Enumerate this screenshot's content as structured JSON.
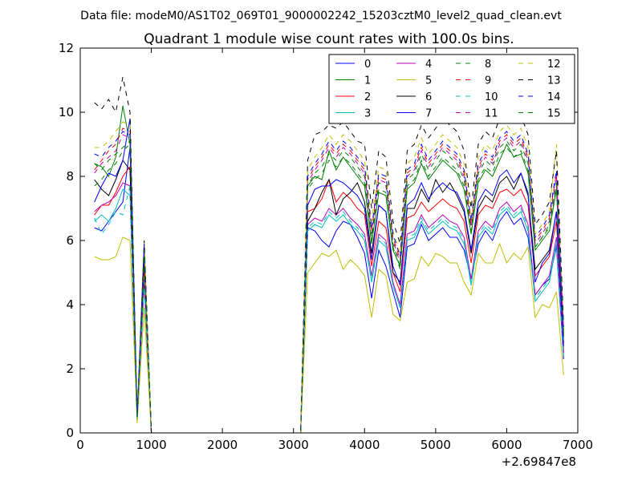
{
  "chart_data": {
    "type": "line",
    "suptitle": "Data file: modeM0/AS1T02_069T01_9000002242_15203cztM0_level2_quad_clean.evt",
    "title": "Quadrant 1 module wise count rates with 100.0s bins.",
    "xlabel": "",
    "ylabel": "",
    "x_offset_label": "+2.69847e8",
    "xlim": [
      0,
      7000
    ],
    "ylim": [
      0,
      12
    ],
    "x_ticks": [
      "0",
      "1000",
      "2000",
      "3000",
      "4000",
      "5000",
      "6000",
      "7000"
    ],
    "y_ticks": [
      "0",
      "2",
      "4",
      "6",
      "8",
      "10",
      "12"
    ],
    "legend_position": "top-right",
    "legend_columns": 4,
    "x": [
      200,
      300,
      400,
      500,
      600,
      700,
      800,
      900,
      1000,
      1100,
      1200,
      1300,
      1400,
      1500,
      1600,
      1700,
      1800,
      1900,
      2000,
      2100,
      2200,
      2300,
      2400,
      2500,
      2600,
      2700,
      2800,
      2900,
      3000,
      3100,
      3200,
      3300,
      3400,
      3500,
      3600,
      3700,
      3800,
      3900,
      4000,
      4100,
      4200,
      4300,
      4400,
      4500,
      4600,
      4700,
      4800,
      4900,
      5000,
      5100,
      5200,
      5300,
      5400,
      5500,
      5600,
      5700,
      5800,
      5900,
      6000,
      6100,
      6200,
      6300,
      6400,
      6500,
      6600,
      6700,
      6800
    ],
    "series": [
      {
        "name": "0",
        "color": "#0000ff",
        "dash": "solid",
        "values": [
          6.4,
          6.3,
          6.6,
          6.9,
          7.2,
          8.9,
          0.4,
          4.8,
          0,
          0,
          0,
          0,
          0,
          0,
          0,
          0,
          0,
          0,
          0,
          0,
          0,
          0,
          0,
          0,
          0,
          0,
          0,
          0,
          0,
          0,
          6.4,
          6.3,
          6.0,
          5.8,
          6.3,
          6.6,
          6.5,
          6.1,
          5.6,
          4.2,
          5.7,
          5.2,
          4.4,
          3.6,
          5.8,
          5.9,
          6.5,
          6.0,
          6.2,
          6.4,
          6.1,
          6.1,
          5.7,
          4.8,
          5.9,
          6.3,
          6.0,
          6.6,
          6.9,
          6.5,
          6.7,
          6.1,
          4.3,
          4.6,
          4.8,
          5.8,
          2.3
        ]
      },
      {
        "name": "1",
        "color": "#008000",
        "dash": "solid",
        "values": [
          8.4,
          8.3,
          8.0,
          8.6,
          10.2,
          9.0,
          0.5,
          5.5,
          0,
          0,
          0,
          0,
          0,
          0,
          0,
          0,
          0,
          0,
          0,
          0,
          0,
          0,
          0,
          0,
          0,
          0,
          0,
          0,
          0,
          0,
          7.7,
          8.0,
          7.9,
          8.8,
          8.2,
          8.6,
          8.3,
          8.0,
          7.7,
          5.9,
          7.5,
          7.4,
          5.7,
          5.2,
          7.6,
          7.8,
          8.4,
          7.9,
          8.2,
          8.5,
          8.3,
          8.1,
          7.6,
          6.2,
          7.8,
          8.2,
          8.0,
          8.5,
          9.0,
          8.6,
          8.7,
          8.1,
          5.7,
          6.0,
          6.3,
          7.6,
          3.0
        ]
      },
      {
        "name": "2",
        "color": "#ff0000",
        "dash": "solid",
        "values": [
          6.8,
          7.1,
          7.1,
          7.5,
          8.0,
          8.3,
          0.5,
          5.2,
          0,
          0,
          0,
          0,
          0,
          0,
          0,
          0,
          0,
          0,
          0,
          0,
          0,
          0,
          0,
          0,
          0,
          0,
          0,
          0,
          0,
          0,
          6.9,
          7.0,
          7.3,
          7.9,
          7.2,
          7.5,
          7.3,
          7.0,
          6.8,
          5.2,
          6.6,
          6.4,
          5.0,
          4.4,
          6.7,
          6.8,
          7.2,
          6.9,
          7.1,
          7.3,
          7.1,
          7.0,
          6.6,
          5.3,
          6.8,
          7.1,
          7.0,
          7.5,
          7.6,
          7.4,
          7.6,
          7.1,
          4.9,
          5.2,
          5.5,
          6.6,
          2.6
        ]
      },
      {
        "name": "3",
        "color": "#00bfbf",
        "dash": "solid",
        "values": [
          6.6,
          6.8,
          6.6,
          7.0,
          7.6,
          7.4,
          0.4,
          4.6,
          0,
          0,
          0,
          0,
          0,
          0,
          0,
          0,
          0,
          0,
          0,
          0,
          0,
          0,
          0,
          0,
          0,
          0,
          0,
          0,
          0,
          0,
          6.3,
          6.5,
          6.4,
          6.8,
          6.6,
          6.8,
          6.5,
          6.3,
          6.0,
          4.7,
          6.0,
          5.8,
          4.6,
          3.9,
          6.0,
          6.1,
          6.6,
          6.2,
          6.4,
          6.6,
          6.4,
          6.3,
          5.9,
          4.6,
          6.1,
          6.4,
          6.2,
          6.8,
          7.0,
          6.7,
          6.9,
          6.3,
          4.1,
          4.4,
          4.7,
          5.9,
          2.4
        ]
      },
      {
        "name": "4",
        "color": "#bf00bf",
        "dash": "solid",
        "values": [
          6.9,
          7.1,
          7.2,
          7.4,
          7.8,
          7.7,
          0.4,
          4.8,
          0,
          0,
          0,
          0,
          0,
          0,
          0,
          0,
          0,
          0,
          0,
          0,
          0,
          0,
          0,
          0,
          0,
          0,
          0,
          0,
          0,
          0,
          6.5,
          6.7,
          6.6,
          7.0,
          6.8,
          7.0,
          6.7,
          6.5,
          6.2,
          4.9,
          6.2,
          6.0,
          4.7,
          4.0,
          6.2,
          6.3,
          6.8,
          6.4,
          6.6,
          6.8,
          6.6,
          6.5,
          6.1,
          4.8,
          6.3,
          6.6,
          6.4,
          7.0,
          7.2,
          6.9,
          7.1,
          6.5,
          4.3,
          4.6,
          4.9,
          6.1,
          2.5
        ]
      },
      {
        "name": "5",
        "color": "#bfbf00",
        "dash": "solid",
        "values": [
          5.5,
          5.4,
          5.4,
          5.5,
          6.1,
          6.0,
          0.3,
          3.9,
          0,
          0,
          0,
          0,
          0,
          0,
          0,
          0,
          0,
          0,
          0,
          0,
          0,
          0,
          0,
          0,
          0,
          0,
          0,
          0,
          0,
          0,
          5.0,
          5.3,
          5.6,
          5.5,
          5.7,
          5.1,
          5.4,
          5.2,
          4.9,
          3.6,
          5.1,
          4.9,
          3.7,
          3.5,
          4.7,
          4.8,
          5.5,
          5.2,
          5.6,
          5.5,
          5.3,
          5.3,
          4.7,
          4.3,
          5.6,
          5.3,
          5.3,
          5.9,
          5.3,
          5.6,
          5.4,
          5.8,
          3.6,
          4.0,
          3.9,
          4.4,
          1.8
        ]
      },
      {
        "name": "6",
        "color": "#000000",
        "dash": "solid",
        "values": [
          7.9,
          7.6,
          7.4,
          7.9,
          8.5,
          8.2,
          0.5,
          5.4,
          0,
          0,
          0,
          0,
          0,
          0,
          0,
          0,
          0,
          0,
          0,
          0,
          0,
          0,
          0,
          0,
          0,
          0,
          0,
          0,
          0,
          0,
          6.6,
          7.0,
          7.5,
          7.9,
          6.8,
          7.3,
          7.5,
          7.8,
          7.2,
          5.6,
          7.1,
          6.9,
          5.0,
          4.7,
          7.0,
          7.0,
          7.6,
          7.2,
          7.9,
          7.5,
          7.8,
          7.4,
          6.9,
          5.6,
          7.0,
          7.4,
          7.2,
          7.8,
          8.0,
          7.6,
          8.1,
          7.4,
          5.1,
          5.4,
          5.7,
          6.9,
          2.8
        ]
      },
      {
        "name": "7",
        "color": "#0000ff",
        "dash": "solid",
        "values": [
          7.2,
          7.7,
          8.1,
          8.0,
          8.5,
          9.8,
          0.5,
          5.8,
          0,
          0,
          0,
          0,
          0,
          0,
          0,
          0,
          0,
          0,
          0,
          0,
          0,
          0,
          0,
          0,
          0,
          0,
          0,
          0,
          0,
          0,
          7.1,
          7.6,
          7.7,
          7.7,
          7.9,
          7.8,
          7.6,
          7.4,
          7.0,
          5.4,
          7.1,
          6.9,
          5.2,
          4.6,
          7.1,
          7.3,
          7.8,
          7.3,
          7.6,
          7.8,
          7.6,
          7.5,
          7.0,
          5.7,
          7.2,
          7.6,
          7.4,
          8.0,
          8.2,
          7.8,
          8.1,
          7.5,
          4.7,
          5.3,
          5.6,
          6.9,
          2.7
        ]
      },
      {
        "name": "8",
        "color": "#008000",
        "dash": "dashed",
        "values": [
          7.7,
          7.9,
          8.2,
          8.4,
          8.8,
          9.0,
          0.5,
          5.6,
          0,
          0,
          0,
          0,
          0,
          0,
          0,
          0,
          0,
          0,
          0,
          0,
          0,
          0,
          0,
          0,
          0,
          0,
          0,
          0,
          0,
          0,
          7.6,
          7.9,
          8.1,
          8.5,
          8.3,
          8.6,
          8.4,
          8.1,
          7.8,
          6.0,
          7.6,
          7.5,
          5.8,
          5.1,
          7.7,
          7.9,
          8.5,
          8.0,
          8.3,
          8.6,
          8.4,
          8.2,
          7.7,
          6.2,
          7.9,
          8.3,
          8.1,
          8.7,
          8.9,
          8.6,
          8.8,
          8.2,
          5.8,
          6.1,
          6.4,
          7.7,
          3.1
        ]
      },
      {
        "name": "9",
        "color": "#ff0000",
        "dash": "dashed",
        "values": [
          8.2,
          8.5,
          8.8,
          9.0,
          9.5,
          9.4,
          0.5,
          5.9,
          0,
          0,
          0,
          0,
          0,
          0,
          0,
          0,
          0,
          0,
          0,
          0,
          0,
          0,
          0,
          0,
          0,
          0,
          0,
          0,
          0,
          0,
          7.9,
          8.3,
          8.6,
          9.0,
          8.7,
          9.0,
          8.8,
          8.5,
          8.2,
          6.3,
          8.0,
          7.9,
          6.1,
          5.4,
          8.1,
          8.3,
          8.9,
          8.4,
          8.7,
          9.0,
          8.8,
          8.6,
          8.1,
          6.5,
          8.3,
          8.7,
          8.5,
          9.1,
          9.3,
          9.0,
          9.2,
          8.6,
          6.0,
          6.3,
          6.7,
          8.1,
          3.2
        ]
      },
      {
        "name": "10",
        "color": "#00bfbf",
        "dash": "dashed",
        "values": [
          6.7,
          6.2,
          6.5,
          6.9,
          6.8,
          7.7,
          0.4,
          4.7,
          0,
          0,
          0,
          0,
          0,
          0,
          0,
          0,
          0,
          0,
          0,
          0,
          0,
          0,
          0,
          0,
          0,
          0,
          0,
          0,
          0,
          0,
          6.4,
          6.6,
          6.5,
          6.9,
          6.7,
          6.9,
          6.6,
          6.4,
          6.1,
          4.8,
          6.1,
          5.9,
          4.6,
          3.9,
          6.1,
          6.2,
          6.7,
          6.3,
          6.5,
          6.7,
          6.5,
          6.4,
          6.0,
          4.7,
          6.2,
          6.5,
          6.3,
          6.9,
          7.1,
          6.8,
          7.0,
          6.4,
          4.2,
          4.5,
          4.8,
          6.0,
          2.4
        ]
      },
      {
        "name": "11",
        "color": "#bf00bf",
        "dash": "dashed",
        "values": [
          8.1,
          8.4,
          8.6,
          8.8,
          9.3,
          9.2,
          0.5,
          5.8,
          0,
          0,
          0,
          0,
          0,
          0,
          0,
          0,
          0,
          0,
          0,
          0,
          0,
          0,
          0,
          0,
          0,
          0,
          0,
          0,
          0,
          0,
          7.8,
          8.2,
          8.5,
          8.9,
          8.6,
          8.9,
          8.7,
          8.4,
          8.1,
          6.2,
          7.9,
          7.8,
          6.0,
          5.3,
          8.0,
          8.2,
          8.8,
          8.3,
          8.6,
          8.9,
          8.7,
          8.5,
          8.0,
          6.4,
          8.2,
          8.6,
          8.4,
          9.0,
          9.2,
          8.9,
          9.1,
          8.5,
          5.9,
          6.2,
          6.6,
          8.0,
          3.2
        ]
      },
      {
        "name": "12",
        "color": "#bfbf00",
        "dash": "dashed",
        "values": [
          8.9,
          8.9,
          9.1,
          9.4,
          9.7,
          9.6,
          0.5,
          6.0,
          0,
          0,
          0,
          0,
          0,
          0,
          0,
          0,
          0,
          0,
          0,
          0,
          0,
          0,
          0,
          0,
          0,
          0,
          0,
          0,
          0,
          0,
          8.2,
          8.6,
          8.9,
          9.3,
          9.0,
          9.3,
          9.1,
          8.8,
          8.5,
          6.6,
          8.3,
          8.2,
          6.3,
          5.6,
          8.4,
          8.6,
          9.2,
          8.7,
          9.0,
          9.3,
          9.1,
          8.9,
          8.4,
          6.7,
          8.6,
          9.0,
          8.8,
          9.4,
          9.6,
          9.3,
          9.5,
          8.9,
          6.2,
          6.5,
          6.9,
          9.0,
          3.3
        ]
      },
      {
        "name": "13",
        "color": "#000000",
        "dash": "dashed",
        "values": [
          10.3,
          10.1,
          10.4,
          10.0,
          11.1,
          10.0,
          0.5,
          6.0,
          0,
          0,
          0,
          0,
          0,
          0,
          0,
          0,
          0,
          0,
          0,
          0,
          0,
          0,
          0,
          0,
          0,
          0,
          0,
          0,
          0,
          0,
          8.5,
          9.3,
          9.4,
          9.6,
          9.5,
          9.7,
          9.4,
          9.1,
          9.0,
          7.0,
          8.8,
          8.6,
          6.6,
          5.9,
          8.8,
          9.0,
          9.6,
          9.2,
          9.5,
          9.8,
          9.6,
          9.4,
          8.8,
          7.0,
          9.0,
          9.4,
          9.2,
          9.8,
          10.0,
          9.7,
          9.9,
          9.3,
          6.5,
          6.8,
          7.2,
          8.8,
          3.4
        ]
      },
      {
        "name": "14",
        "color": "#0000ff",
        "dash": "dashed",
        "values": [
          8.7,
          8.6,
          8.9,
          9.1,
          9.4,
          9.3,
          0.5,
          5.9,
          0,
          0,
          0,
          0,
          0,
          0,
          0,
          0,
          0,
          0,
          0,
          0,
          0,
          0,
          0,
          0,
          0,
          0,
          0,
          0,
          0,
          0,
          8.0,
          8.4,
          8.7,
          9.1,
          8.8,
          9.1,
          8.9,
          8.6,
          8.3,
          6.4,
          8.1,
          8.0,
          6.2,
          5.5,
          8.2,
          8.4,
          9.0,
          8.5,
          8.8,
          9.1,
          8.9,
          8.7,
          8.2,
          6.6,
          8.4,
          8.8,
          8.6,
          9.2,
          9.4,
          9.1,
          9.3,
          8.7,
          6.1,
          6.4,
          6.8,
          8.2,
          3.3
        ]
      },
      {
        "name": "15",
        "color": "#008000",
        "dash": "dashed",
        "values": [
          8.4,
          8.2,
          8.5,
          8.7,
          8.9,
          9.1,
          0.5,
          5.7,
          0,
          0,
          0,
          0,
          0,
          0,
          0,
          0,
          0,
          0,
          0,
          0,
          0,
          0,
          0,
          0,
          0,
          0,
          0,
          0,
          0,
          0,
          7.7,
          8.1,
          8.3,
          8.7,
          8.5,
          8.8,
          8.6,
          8.3,
          8.0,
          6.1,
          7.8,
          7.7,
          5.9,
          5.2,
          7.9,
          8.1,
          8.7,
          8.2,
          8.5,
          8.8,
          8.6,
          8.4,
          7.9,
          6.3,
          8.1,
          8.5,
          8.3,
          8.9,
          9.1,
          8.8,
          9.0,
          8.4,
          5.8,
          6.1,
          6.5,
          7.8,
          3.1
        ]
      }
    ]
  }
}
